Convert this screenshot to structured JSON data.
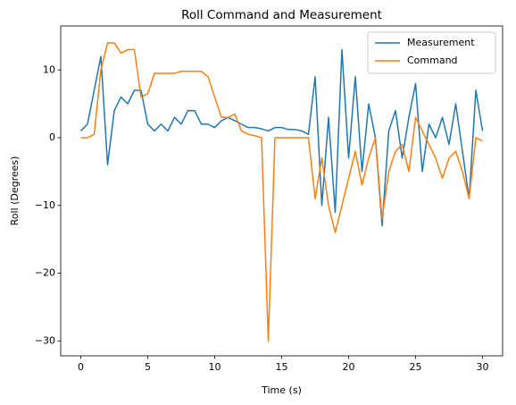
{
  "chart_data": {
    "type": "line",
    "title": "Roll Command and Measurement",
    "xlabel": "Time (s)",
    "ylabel": "Roll (Degrees)",
    "x": [
      0,
      0.5,
      1,
      1.5,
      2,
      2.5,
      3,
      3.5,
      4,
      4.5,
      5,
      5.5,
      6,
      6.5,
      7,
      7.5,
      8,
      8.5,
      9,
      9.5,
      10,
      10.5,
      11,
      11.5,
      12,
      12.5,
      13,
      13.5,
      14,
      14.5,
      15,
      15.5,
      16,
      16.5,
      17,
      17.5,
      18,
      18.5,
      19,
      19.5,
      20,
      20.5,
      21,
      21.5,
      22,
      22.5,
      23,
      23.5,
      24,
      24.5,
      25,
      25.5,
      26,
      26.5,
      27,
      27.5,
      28,
      28.5,
      29,
      29.5,
      30
    ],
    "series": [
      {
        "name": "Measurement",
        "color": "#1f77b4",
        "values": [
          1,
          2,
          7,
          12,
          -4,
          4,
          6,
          5,
          7,
          7,
          2,
          1,
          2,
          1,
          3,
          2,
          4,
          4,
          2,
          2,
          1.5,
          2.5,
          3,
          2.5,
          2,
          1.5,
          1.5,
          1.3,
          1,
          1.5,
          1.5,
          1.2,
          1.2,
          1,
          0.5,
          9,
          -10,
          3,
          -11,
          13,
          -3,
          9,
          -5,
          5,
          0,
          -13,
          1,
          4,
          -3,
          3,
          8,
          -5,
          2,
          0,
          3,
          -1,
          5,
          -2,
          -9,
          7,
          1
        ]
      },
      {
        "name": "Command",
        "color": "#ff7f0e",
        "values": [
          0,
          0,
          0.5,
          10,
          14,
          14,
          12.5,
          13,
          13,
          6,
          6.5,
          9.5,
          9.5,
          9.5,
          9.5,
          9.8,
          9.8,
          9.8,
          9.8,
          9,
          6,
          3,
          3,
          3.5,
          1,
          0.5,
          0.3,
          0,
          -30,
          0,
          0,
          0,
          0,
          0,
          0,
          -9,
          -3,
          -10,
          -14,
          -10,
          -6,
          -2,
          -7,
          -3,
          0,
          -12,
          -5,
          -2,
          -1,
          -5,
          3,
          1,
          -1,
          -3,
          -6,
          -3,
          -2,
          -5,
          -9,
          0,
          -0.5
        ]
      }
    ],
    "xlim": [
      -1.5,
      31.5
    ],
    "ylim": [
      -32.2,
      16.5
    ],
    "xticks": [
      0,
      5,
      10,
      15,
      20,
      25,
      30
    ],
    "yticks": [
      {
        "value": -30,
        "label": "−30"
      },
      {
        "value": -20,
        "label": "−20"
      },
      {
        "value": -10,
        "label": "−10"
      },
      0,
      10
    ],
    "legend": "upper right"
  }
}
